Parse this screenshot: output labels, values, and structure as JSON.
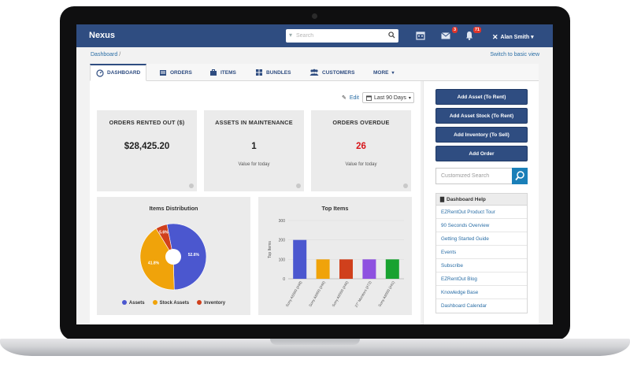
{
  "app": {
    "brand": "Nexus"
  },
  "search": {
    "placeholder": "Search"
  },
  "notifications": {
    "messages_count": "3",
    "alerts_count": "71"
  },
  "user": {
    "name": "Alan Smith"
  },
  "breadcrumb": {
    "root": "Dashboard",
    "separator": "/"
  },
  "switch_link": "Switch to basic view",
  "tabs": [
    {
      "label": "DASHBOARD",
      "icon": "dashboard-icon",
      "active": true
    },
    {
      "label": "ORDERS",
      "icon": "orders-icon"
    },
    {
      "label": "ITEMS",
      "icon": "briefcase-icon"
    },
    {
      "label": "BUNDLES",
      "icon": "bundles-icon"
    },
    {
      "label": "CUSTOMERS",
      "icon": "customers-icon"
    },
    {
      "label": "MORE",
      "icon": "caret-down-icon"
    }
  ],
  "toolbar": {
    "edit_label": "Edit",
    "period_label": "Last 90 Days"
  },
  "kpis": [
    {
      "title": "ORDERS RENTED OUT ($)",
      "value": "$28,425.20",
      "subtitle": ""
    },
    {
      "title": "ASSETS IN MAINTENANCE",
      "value": "1",
      "subtitle": "Value for today"
    },
    {
      "title": "ORDERS OVERDUE",
      "value": "26",
      "subtitle": "Value for today",
      "value_color": "#d7151a"
    }
  ],
  "items_distribution": {
    "title": "Items Distribution",
    "legend": [
      "Assets",
      "Stock Assets",
      "Inventory"
    ],
    "slice_labels": [
      "52.6%",
      "41.8%",
      "5.6%"
    ]
  },
  "top_items": {
    "title": "Top Items",
    "ylabel": "Top Items"
  },
  "chart_data": [
    {
      "type": "pie",
      "title": "Items Distribution",
      "categories": [
        "Assets",
        "Stock Assets",
        "Inventory"
      ],
      "values": [
        52.6,
        41.8,
        5.6
      ],
      "colors": [
        "#4b57cf",
        "#f0a30a",
        "#d0401c"
      ],
      "legend": "bottom"
    },
    {
      "type": "bar",
      "title": "Top Items",
      "ylabel": "Top Items",
      "categories": [
        "Sony A6000 (#48)",
        "Sony A6000 (#46)",
        "Sony A6000 (#46)",
        "27\" Monitors (#72)",
        "Sony A6000 (#41)"
      ],
      "values": [
        200,
        100,
        100,
        100,
        100
      ],
      "colors": [
        "#4b57cf",
        "#f0a30a",
        "#d0401c",
        "#8e51e0",
        "#18a230"
      ],
      "ylim": [
        0,
        300
      ],
      "yticks": [
        0,
        100,
        200,
        300
      ]
    }
  ],
  "sidebar": {
    "buttons": [
      "Add Asset (To Rent)",
      "Add Asset Stock (To Rent)",
      "Add Inventory (To Sell)",
      "Add Order"
    ],
    "search_placeholder": "Customized Search",
    "help_title": "Dashboard Help",
    "help_links": [
      "EZRentOut Product Tour",
      "90 Seconds Overview",
      "Getting Started Guide",
      "Events",
      "Subscribe",
      "EZRentOut Blog",
      "Knowledge Base",
      "Dashboard Calendar"
    ]
  }
}
